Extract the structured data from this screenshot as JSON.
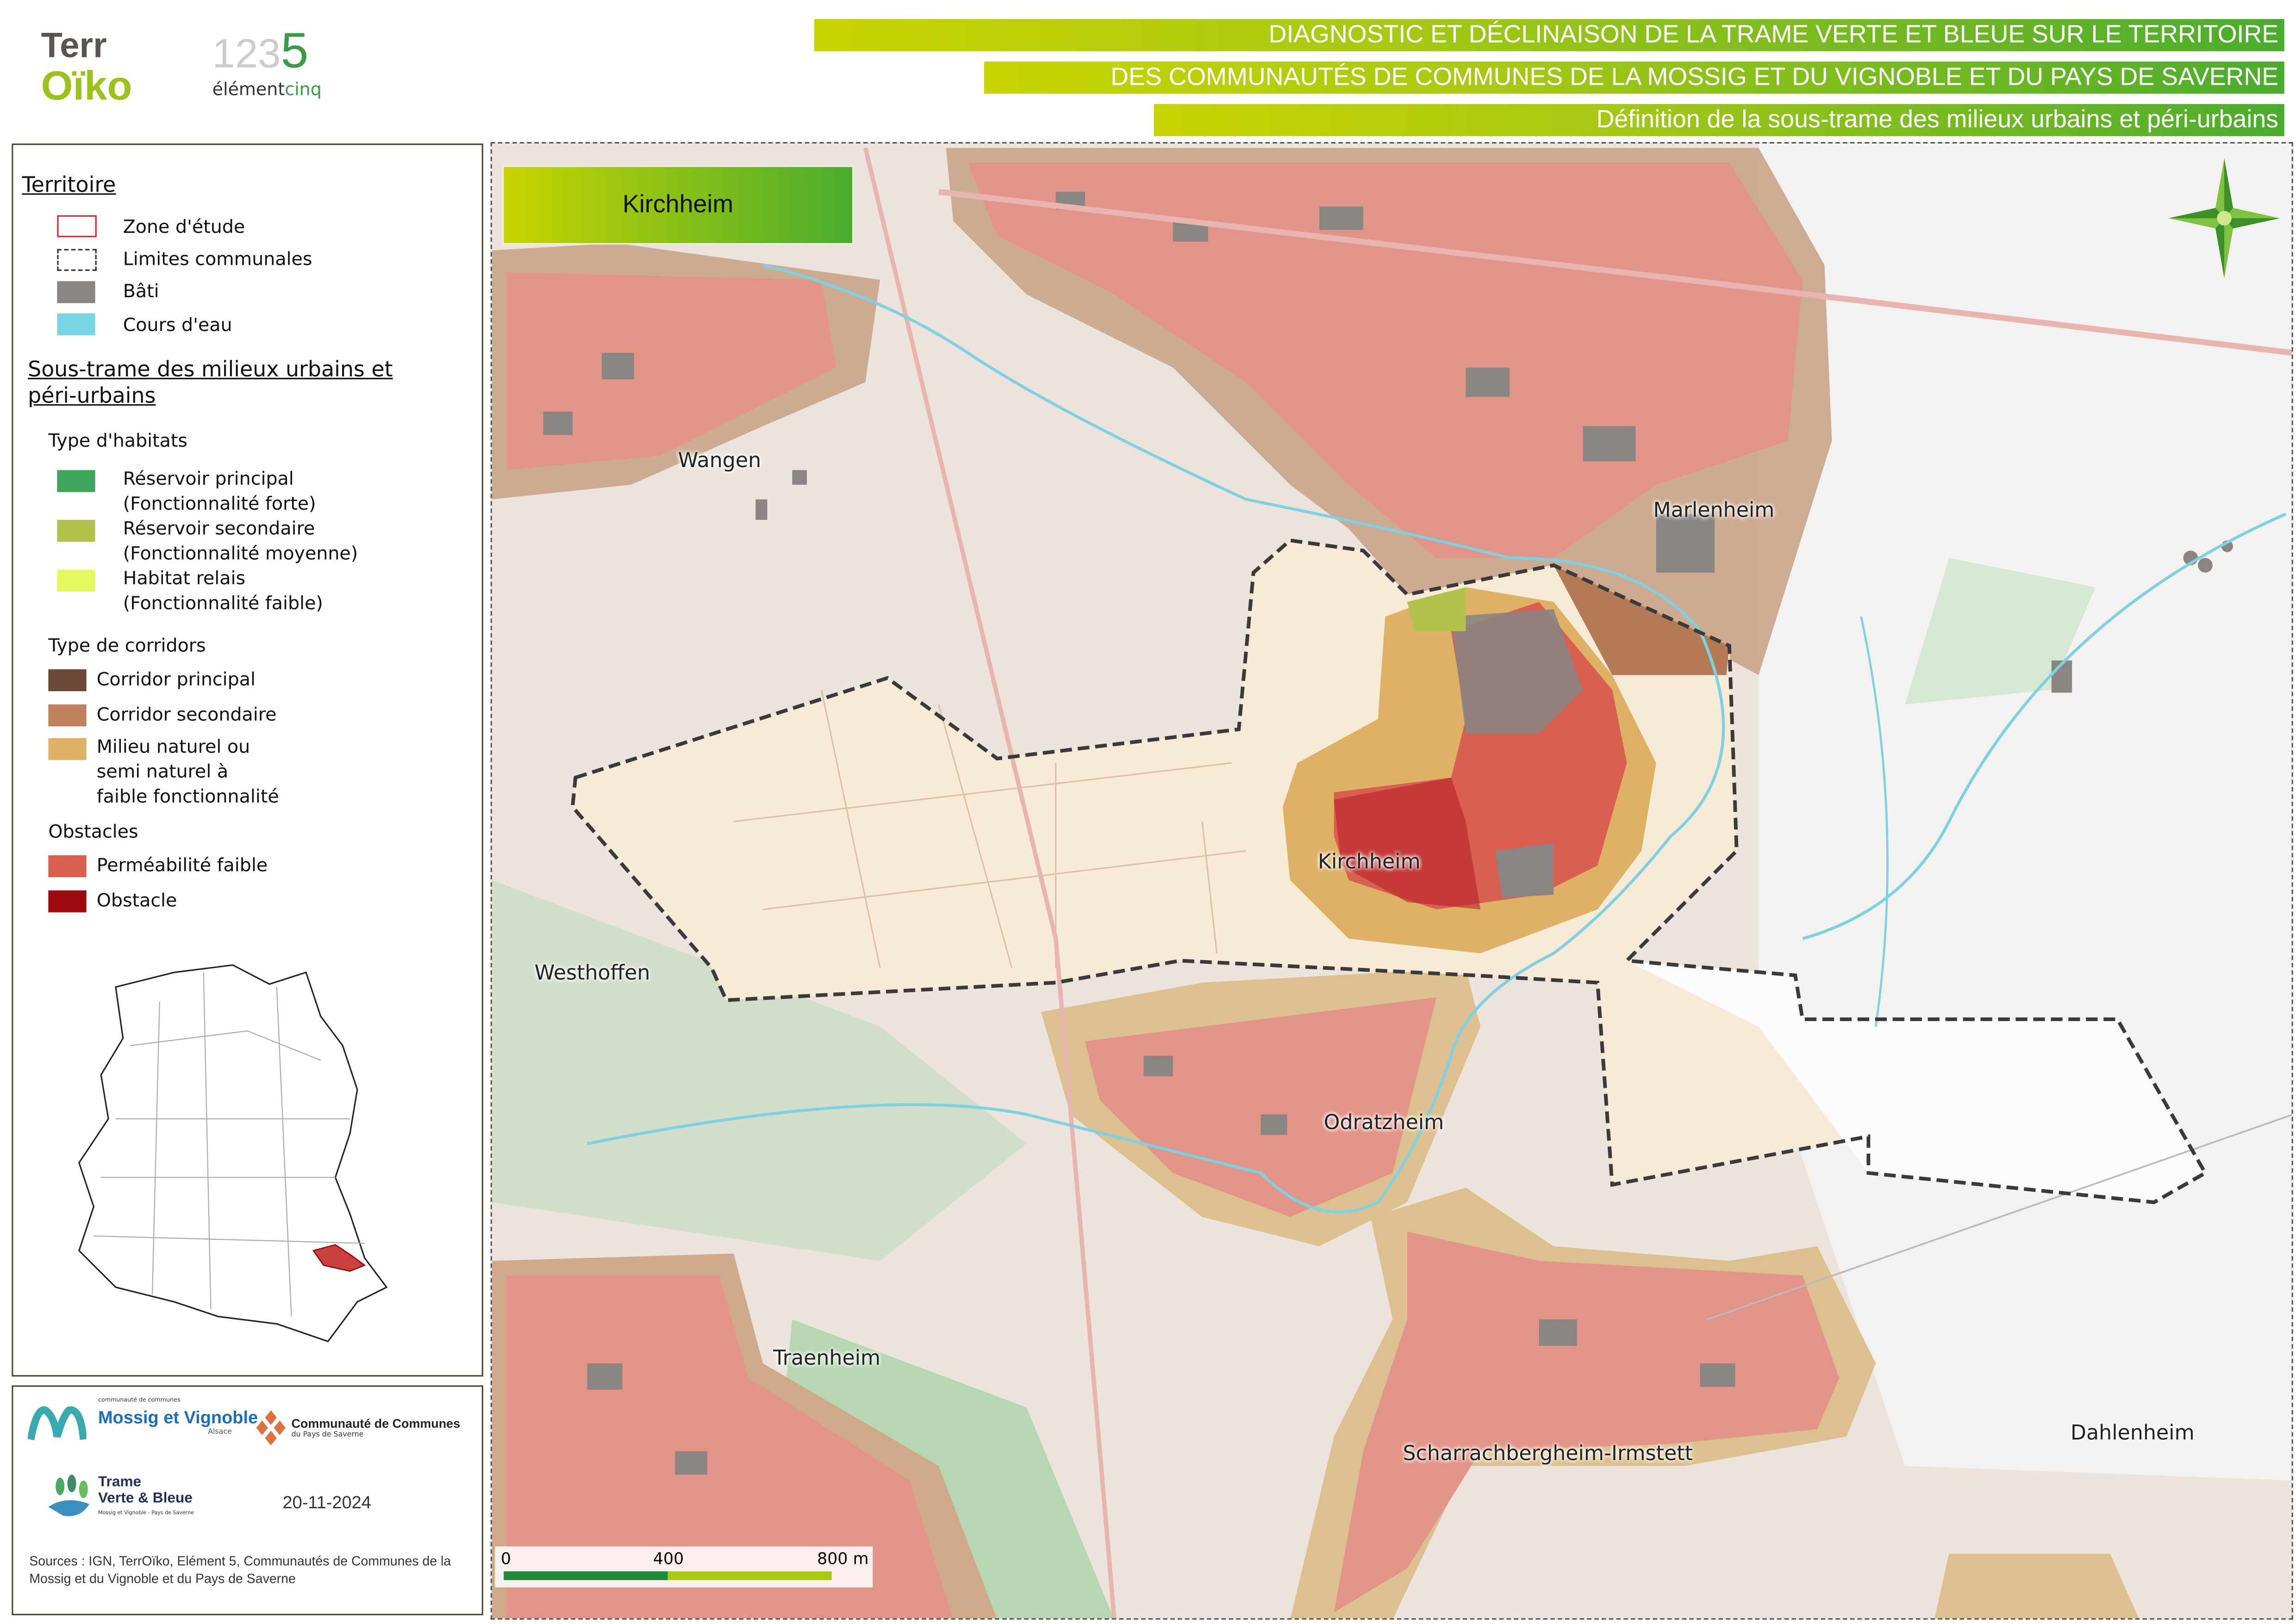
{
  "header": {
    "logo_terroiko": "TerrOïko",
    "logo_element5": "12345 élémentcinq",
    "title_line1": "DIAGNOSTIC ET DÉCLINAISON DE LA TRAME VERTE ET BLEUE SUR LE TERRITOIRE",
    "title_line2": "DES COMMUNAUTÉS DE COMMUNES DE LA MOSSIG ET DU VIGNOBLE ET DU PAYS DE SAVERNE",
    "title_line3": "Définition de la sous-trame des milieux urbains et péri-urbains"
  },
  "legend": {
    "territoire_title": "Territoire",
    "territoire_items": [
      {
        "label": "Zone d'étude",
        "color": "#e8202a"
      },
      {
        "label": "Limites communales",
        "color": "#333333"
      },
      {
        "label": "Bâti",
        "color": "#8a8483"
      },
      {
        "label": "Cours d'eau",
        "color": "#78d6e4"
      }
    ],
    "soustrame_title": "Sous-trame des milieux urbains et péri-urbains",
    "habitats_title": "Type d'habitats",
    "habitats": [
      {
        "label": "Réservoir principal",
        "sub": "(Fonctionnalité forte)",
        "color": "#3ea65a"
      },
      {
        "label": "Réservoir secondaire",
        "sub": "(Fonctionnalité moyenne)",
        "color": "#b3c24c"
      },
      {
        "label": "Habitat relais",
        "sub": "(Fonctionnalité faible)",
        "color": "#e4f75f"
      }
    ],
    "corridors_title": "Type de corridors",
    "corridors": [
      {
        "label": "Corridor principal",
        "color": "#6b4936"
      },
      {
        "label": "Corridor secondaire",
        "color": "#c0825e"
      },
      {
        "label": "Milieu naturel ou semi naturel à faible fonctionnalité",
        "lines": [
          "Milieu naturel ou",
          "semi naturel à",
          "faible fonctionnalité"
        ],
        "color": "#ddb266"
      }
    ],
    "obstacles_title": "Obstacles",
    "obstacles": [
      {
        "label": "Perméabilité faible",
        "color": "#d96050"
      },
      {
        "label": "Obstacle",
        "color": "#9e0a10"
      }
    ]
  },
  "logos": {
    "mossig": "Mossig et Vignoble",
    "mossig_small": "communauté de communes",
    "mossig_region": "Alsace",
    "saverne_line1": "Communauté de Communes",
    "saverne_line2": "du Pays de Saverne",
    "tvb_line1": "Trame",
    "tvb_line2": "Verte & Bleue",
    "tvb_line3": "Mossig et Vignoble - Pays de Saverne",
    "date": "20-11-2024",
    "sources": "Sources : IGN, TerrOïko, Elément 5, Communautés de Communes de la Mossig et du Vignoble et du Pays de Saverne"
  },
  "map": {
    "commune_box": "Kirchheim",
    "towns": [
      "Wangen",
      "Marlenheim",
      "Kirchheim",
      "Westhoffen",
      "Odratzheim",
      "Traenheim",
      "Scharrachbergheim-Irmstett",
      "Dahlenheim"
    ],
    "scale": {
      "labels": [
        "0",
        "400",
        "800 m"
      ]
    },
    "north_arrow": "compass-rose-icon"
  }
}
